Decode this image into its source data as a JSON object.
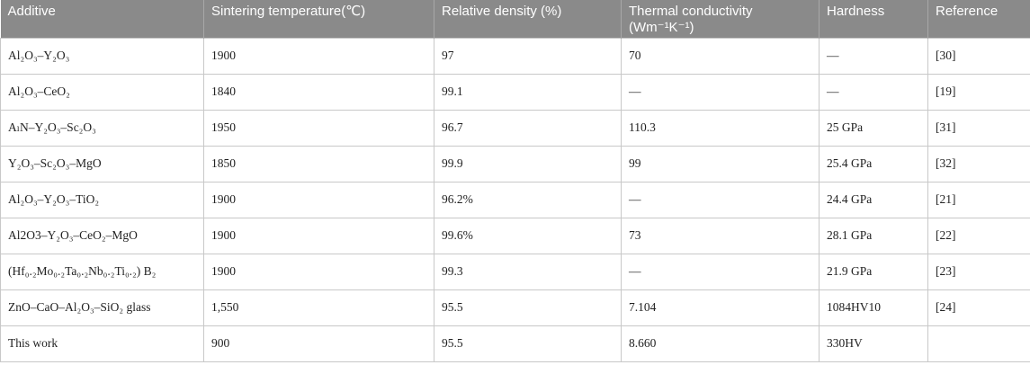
{
  "table": {
    "header": [
      "Additive",
      "Sintering temperature(℃)",
      "Relative density (%)",
      "Thermal conductivity (Wm⁻¹K⁻¹)",
      "Hardness",
      "Reference"
    ],
    "rows": [
      [
        "Al₂O₃–Y₂O₃",
        "1900",
        "97",
        "70",
        "—",
        "[30]"
      ],
      [
        "Al₂O₃–CeO₂",
        "1840",
        "99.1",
        "—",
        "—",
        "[19]"
      ],
      [
        "AₗN–Y₂O₃–Sc₂O₃",
        "1950",
        "96.7",
        "110.3",
        "25 GPa",
        "[31]"
      ],
      [
        "Y₂O₃–Sc₂O₃–MgO",
        "1850",
        "99.9",
        "99",
        "25.4 GPa",
        "[32]"
      ],
      [
        "Al₂O₃–Y₂O₃–TiO₂",
        "1900",
        "96.2%",
        "—",
        "24.4 GPa",
        "[21]"
      ],
      [
        "Al2O3–Y₂O₃–CeO₂–MgO",
        "1900",
        "99.6%",
        "73",
        "28.1 GPa",
        "[22]"
      ],
      [
        "(Hf₀.₂Mo₀.₂Ta₀.₂Nb₀.₂Ti₀.₂) B₂",
        "1900",
        "99.3",
        "—",
        "21.9 GPa",
        "[23]"
      ],
      [
        "ZnO–CaO–Al₂O₃–SiO₂ glass",
        "1,550",
        "95.5",
        "7.104",
        "1084HV10",
        "[24]"
      ],
      [
        "This work",
        "900",
        "95.5",
        "8.660",
        "330HV"
      ]
    ]
  }
}
